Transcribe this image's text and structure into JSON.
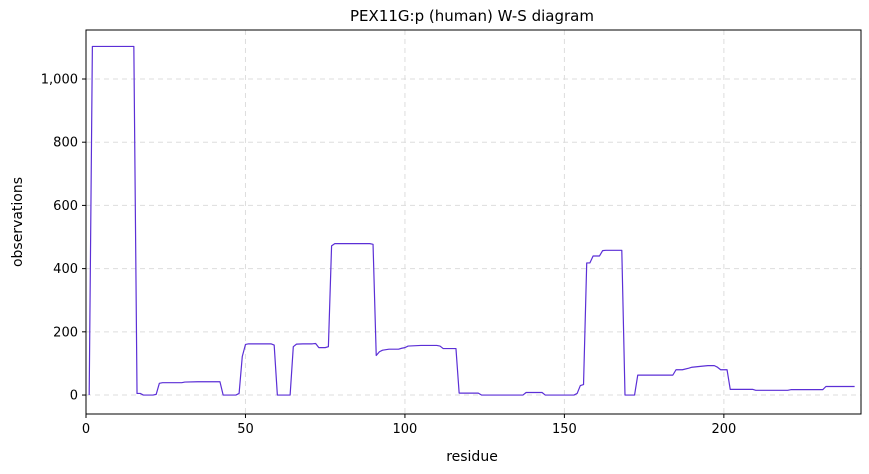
{
  "chart_data": {
    "type": "line",
    "title": "PEX11G:p (human) W-S diagram",
    "xlabel": "residue",
    "ylabel": "observations",
    "xlim": [
      0,
      243
    ],
    "ylim": [
      -60,
      1155
    ],
    "grid": true,
    "x_ticks": [
      0,
      50,
      100,
      150,
      200
    ],
    "y_ticks": [
      0,
      200,
      400,
      600,
      800,
      1000
    ],
    "x_tick_labels": [
      "0",
      "50",
      "100",
      "150",
      "200"
    ],
    "y_tick_labels": [
      "0",
      "200",
      "400",
      "600",
      "800",
      "1,000"
    ],
    "colors": {
      "line": "#5b2fd6",
      "grid": "#dddddd"
    },
    "series": [
      {
        "x": [
          1,
          2,
          3,
          10,
          15,
          16,
          17,
          18,
          19,
          20,
          21,
          22,
          23,
          24,
          25,
          30,
          31,
          35,
          40,
          42,
          43,
          47,
          48,
          49,
          50,
          51,
          55,
          58,
          59,
          60,
          61,
          62,
          64,
          65,
          66,
          68,
          71,
          72,
          73,
          75,
          76,
          77,
          78,
          80,
          85,
          89,
          90,
          91,
          92,
          93,
          95,
          97,
          98,
          99,
          100,
          101,
          105,
          110,
          111,
          112,
          116,
          117,
          118,
          123,
          124,
          125,
          130,
          137,
          138,
          140,
          143,
          144,
          150,
          153,
          154,
          155,
          156,
          157,
          158,
          159,
          161,
          162,
          163,
          167,
          168,
          169,
          170,
          172,
          173,
          179,
          183,
          184,
          185,
          187,
          189,
          190,
          193,
          195,
          197,
          198,
          199,
          200,
          201,
          202,
          207,
          208,
          209,
          210,
          219,
          220,
          221,
          230,
          231,
          232,
          241
        ],
        "y": [
          0,
          1103,
          1103,
          1103,
          1103,
          5,
          5,
          0,
          0,
          0,
          0,
          2,
          37,
          39,
          39,
          39,
          41,
          42,
          42,
          42,
          0,
          0,
          5,
          122,
          160,
          162,
          162,
          162,
          158,
          0,
          0,
          0,
          0,
          153,
          161,
          162,
          162,
          163,
          150,
          150,
          153,
          472,
          479,
          479,
          479,
          479,
          477,
          125,
          137,
          142,
          145,
          145,
          145,
          148,
          150,
          155,
          157,
          157,
          155,
          147,
          147,
          6,
          6,
          6,
          0,
          0,
          0,
          0,
          8,
          8,
          8,
          0,
          0,
          0,
          5,
          30,
          33,
          418,
          418,
          440,
          440,
          457,
          458,
          458,
          458,
          0,
          0,
          0,
          63,
          63,
          63,
          63,
          80,
          80,
          85,
          88,
          91,
          93,
          93,
          88,
          80,
          80,
          80,
          18,
          18,
          18,
          18,
          15,
          15,
          15,
          17,
          17,
          17,
          27,
          27
        ]
      }
    ]
  }
}
